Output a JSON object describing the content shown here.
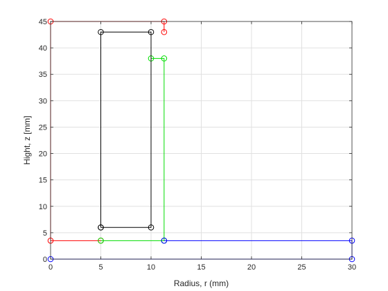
{
  "chart_data": {
    "type": "line",
    "xlabel": "Radius, r (mm)",
    "ylabel": "Hight, z [mm]",
    "xlim": [
      0,
      30
    ],
    "ylim": [
      0,
      45
    ],
    "xticks": [
      0,
      5,
      10,
      15,
      20,
      25,
      30
    ],
    "yticks": [
      0,
      5,
      10,
      15,
      20,
      25,
      30,
      35,
      40,
      45
    ],
    "grid": true,
    "marker": "circle",
    "series": [
      {
        "color": "#ff0000",
        "x": [
          11.3,
          11.3,
          0,
          0,
          5
        ],
        "y": [
          43,
          45,
          45,
          3.5,
          3.5
        ]
      },
      {
        "color": "#00dd00",
        "x": [
          10,
          11.3,
          11.3,
          5
        ],
        "y": [
          38,
          38,
          3.5,
          3.5
        ]
      },
      {
        "color": "#000000",
        "x": [
          5,
          10,
          10,
          5,
          5
        ],
        "y": [
          6,
          6,
          43,
          43,
          6
        ]
      },
      {
        "color": "#0000ff",
        "x": [
          11.3,
          30,
          30,
          0
        ],
        "y": [
          3.5,
          3.5,
          0,
          0
        ]
      }
    ]
  }
}
